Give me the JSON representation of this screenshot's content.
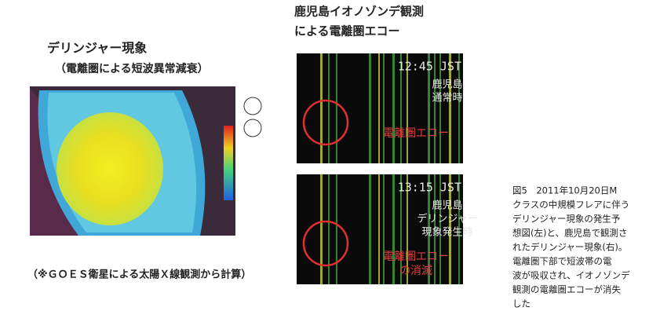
{
  "left_figure": {
    "title": "デリンジャー現象",
    "subtitle": "（電離圏による短波異常減衰）",
    "note": "（※ＧＯＥＳ衛星による太陽Ｘ線観測から計算）"
  },
  "right_figure": {
    "title_lines": [
      "鹿児島イオノゾンデ観測",
      "による電離圏エコー"
    ],
    "panels": [
      {
        "time": "12:45 JST",
        "labels": [
          "鹿児島",
          "通常時"
        ],
        "echo_lines": [
          "電離圏エコー"
        ]
      },
      {
        "time": "13:15 JST",
        "labels": [
          "鹿児島",
          "デリンジャー",
          "現象発生時"
        ],
        "echo_lines": [
          "電離圏エコー",
          "の消滅"
        ]
      }
    ]
  },
  "caption": {
    "lines": [
      "図5　2011年10月20日M",
      "クラスの中規模フレアに伴う",
      "デリンジャー現象の発生予",
      "想図(左)と、鹿児島で観測さ",
      "れたデリンジャー現象(右)。",
      "電離圏下部で短波帯の電",
      "波が吸収され、イオノゾンデ",
      "観測の電離圏エコーが消失",
      "した"
    ]
  }
}
